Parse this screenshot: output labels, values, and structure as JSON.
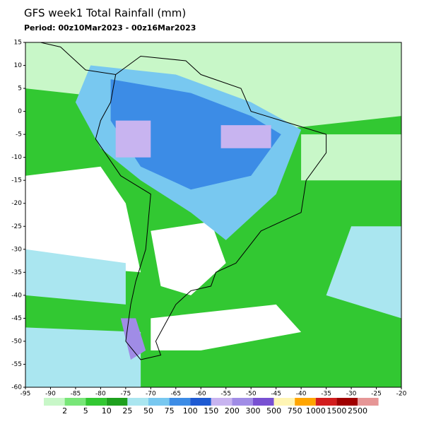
{
  "map": {
    "title": "GFS week1 Total Rainfall (mm)",
    "period": "Period: 00z10Mar2023 - 00z16Mar2023",
    "lat_ticks": [
      15,
      10,
      5,
      0,
      -5,
      -10,
      -15,
      -20,
      -25,
      -30,
      -35,
      -40,
      -45,
      -50,
      -55,
      -60
    ],
    "lon_ticks": [
      -95,
      -90,
      -85,
      -80,
      -75,
      -70,
      -65,
      -60,
      -55,
      -50,
      -45,
      -40,
      -35,
      -30,
      -25,
      -20
    ],
    "colorbar": {
      "levels": [
        2,
        5,
        10,
        25,
        50,
        75,
        100,
        150,
        200,
        300,
        500,
        750,
        1000,
        1500,
        2500
      ],
      "colors": [
        "#c8f7c8",
        "#78e678",
        "#32c832",
        "#1ea01e",
        "#aae6f0",
        "#78c8f0",
        "#3c8ce6",
        "#1e5ad2",
        "#c8b4f0",
        "#a08ce6",
        "#7850d2",
        "#fff5b4",
        "#ffa500",
        "#d21e1e",
        "#a00000",
        "#e69696"
      ]
    }
  }
}
